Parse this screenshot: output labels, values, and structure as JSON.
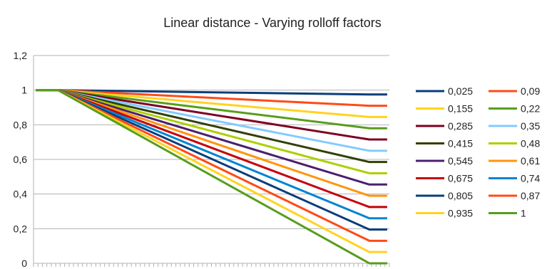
{
  "chart_data": {
    "type": "line",
    "title": "Linear distance - Varying rolloff factors",
    "xlabel": "",
    "ylabel": "",
    "ylim": [
      0,
      1.2
    ],
    "yticks": [
      "0",
      "0,2",
      "0,4",
      "0,6",
      "0,8",
      "1",
      "1,2"
    ],
    "x_points": 80,
    "plateau_end_index": 5,
    "ramp_end_index": 75,
    "legend_position": "right",
    "grid": "horizontal",
    "series": [
      {
        "name": "0,025",
        "color": "#0a3d7a",
        "end_value": 0.975
      },
      {
        "name": "0,09",
        "color": "#ff4a17",
        "end_value": 0.91
      },
      {
        "name": "0,155",
        "color": "#ffd320",
        "end_value": 0.845
      },
      {
        "name": "0,22",
        "color": "#579d1c",
        "end_value": 0.78
      },
      {
        "name": "0,285",
        "color": "#7e0021",
        "end_value": 0.715
      },
      {
        "name": "0,35",
        "color": "#83caff",
        "end_value": 0.65
      },
      {
        "name": "0,415",
        "color": "#314004",
        "end_value": 0.585
      },
      {
        "name": "0,48",
        "color": "#aecf00",
        "end_value": 0.52
      },
      {
        "name": "0,545",
        "color": "#4b1f6f",
        "end_value": 0.455
      },
      {
        "name": "0,61",
        "color": "#ff950e",
        "end_value": 0.39
      },
      {
        "name": "0,675",
        "color": "#c5000b",
        "end_value": 0.325
      },
      {
        "name": "0,74",
        "color": "#0084d1",
        "end_value": 0.26
      },
      {
        "name": "0,805",
        "color": "#0a3d7a",
        "end_value": 0.195
      },
      {
        "name": "0,87",
        "color": "#ff4a17",
        "end_value": 0.13
      },
      {
        "name": "0,935",
        "color": "#ffd320",
        "end_value": 0.065
      },
      {
        "name": "1",
        "color": "#579d1c",
        "end_value": 0.0
      }
    ]
  }
}
